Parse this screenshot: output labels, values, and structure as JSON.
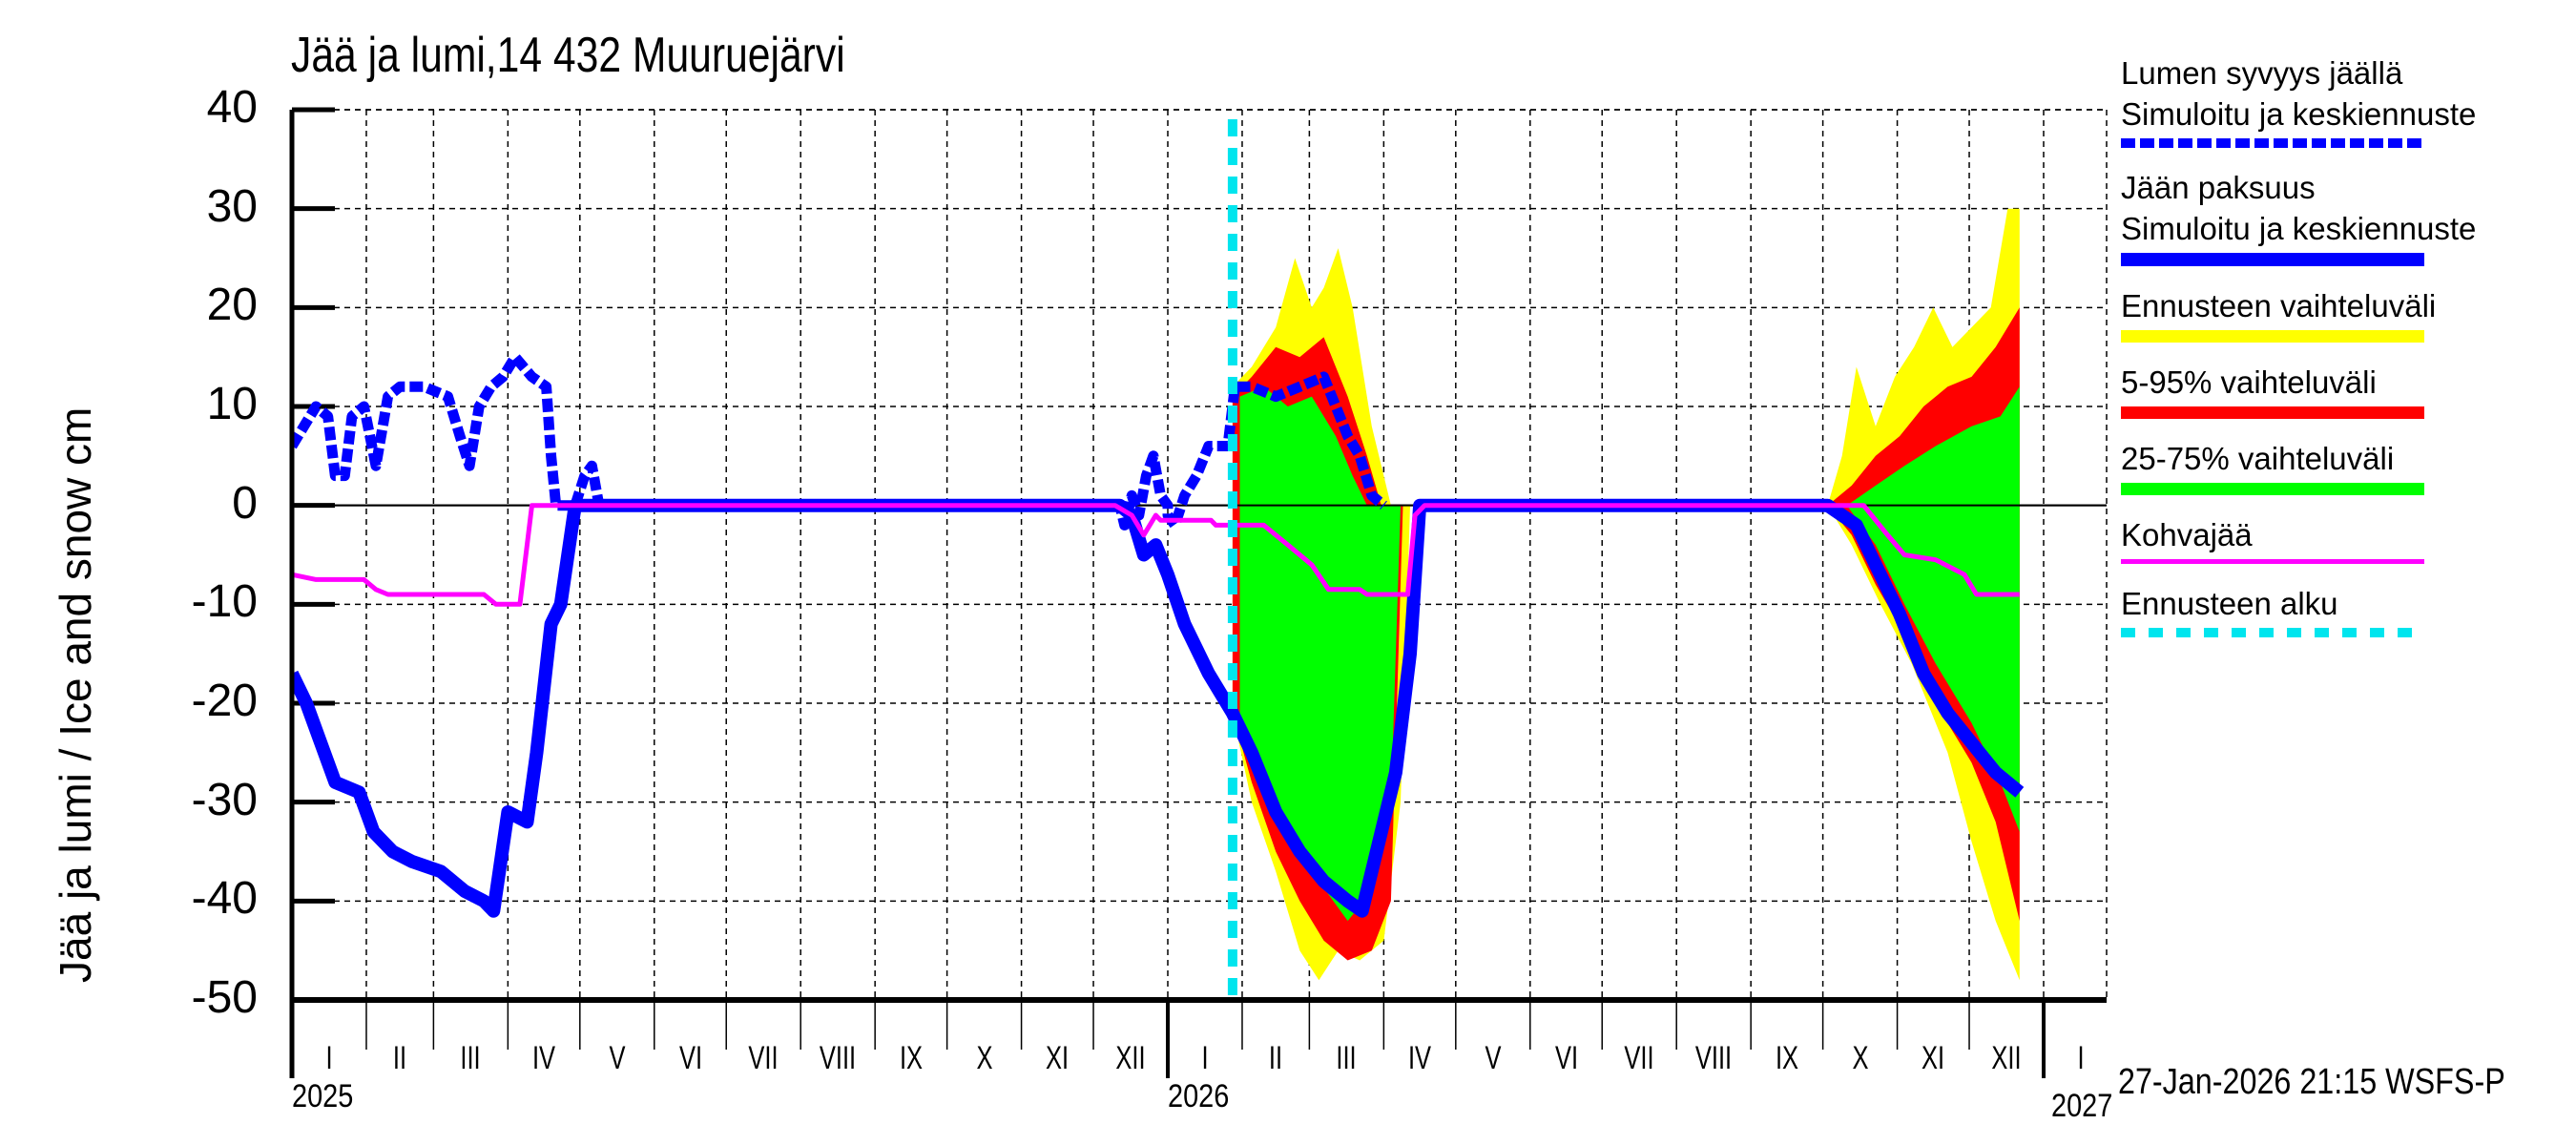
{
  "chart_data": {
    "type": "area",
    "title": "Jää ja lumi,14 432 Muuruejärvi",
    "xlabel": "",
    "ylabel": "Jää ja lumi / Ice and snow    cm",
    "ylim": [
      -50,
      40
    ],
    "yticks": [
      40,
      30,
      20,
      10,
      0,
      -10,
      -20,
      -30,
      -40,
      -50
    ],
    "grid": true,
    "legend_position": "right",
    "x_unit": "days since 2025-01-01",
    "xlim": [
      0,
      720
    ],
    "month_labels": [
      "I",
      "II",
      "III",
      "IV",
      "V",
      "VI",
      "VII",
      "VIII",
      "IX",
      "X",
      "XI",
      "XII",
      "I",
      "II",
      "III",
      "IV",
      "V",
      "VI",
      "VII",
      "VIII",
      "IX",
      "X",
      "XI",
      "XII",
      "I"
    ],
    "year_labels": [
      {
        "label": "2025",
        "day": 0
      },
      {
        "label": "2026",
        "day": 365
      },
      {
        "label": "2027",
        "day": 730
      }
    ],
    "forecast_start_day": 392,
    "series": [
      {
        "name": "Lumen syvyys jäällä – Simuloitu ja keskiennuste",
        "style": "dashed",
        "color": "#0000ff",
        "points": [
          [
            0,
            6
          ],
          [
            5,
            8
          ],
          [
            10,
            10
          ],
          [
            15,
            9
          ],
          [
            18,
            3
          ],
          [
            22,
            3
          ],
          [
            25,
            9
          ],
          [
            30,
            10
          ],
          [
            35,
            4
          ],
          [
            40,
            11
          ],
          [
            45,
            12
          ],
          [
            55,
            12
          ],
          [
            65,
            11
          ],
          [
            70,
            7
          ],
          [
            74,
            4
          ],
          [
            78,
            10
          ],
          [
            83,
            12
          ],
          [
            88,
            13
          ],
          [
            93,
            15
          ],
          [
            100,
            13
          ],
          [
            106,
            12
          ],
          [
            108,
            5
          ],
          [
            110,
            0
          ],
          [
            118,
            0
          ],
          [
            122,
            3
          ],
          [
            125,
            4
          ],
          [
            128,
            0
          ],
          [
            365,
            0
          ],
          [
            345,
            0
          ],
          [
            347,
            -2
          ],
          [
            350,
            1
          ],
          [
            353,
            -1
          ],
          [
            356,
            3
          ],
          [
            359,
            5
          ],
          [
            362,
            1
          ],
          [
            365,
            -1
          ],
          [
            368,
            -2
          ],
          [
            372,
            1
          ],
          [
            377,
            3
          ],
          [
            382,
            6
          ],
          [
            390,
            6
          ],
          [
            393,
            12
          ],
          [
            400,
            12
          ],
          [
            410,
            11
          ],
          [
            420,
            12
          ],
          [
            430,
            13
          ],
          [
            435,
            10
          ],
          [
            440,
            7
          ],
          [
            445,
            5
          ],
          [
            450,
            1
          ],
          [
            455,
            0
          ]
        ]
      },
      {
        "name": "Jään paksuus – Simuloitu ja keskiennuste",
        "style": "solid",
        "color": "#0000ff",
        "points": [
          [
            0,
            -17
          ],
          [
            6,
            -20
          ],
          [
            12,
            -24
          ],
          [
            18,
            -28
          ],
          [
            28,
            -29
          ],
          [
            34,
            -33
          ],
          [
            42,
            -35
          ],
          [
            50,
            -36
          ],
          [
            62,
            -37
          ],
          [
            72,
            -39
          ],
          [
            80,
            -40
          ],
          [
            84,
            -41
          ],
          [
            90,
            -31
          ],
          [
            98,
            -32
          ],
          [
            102,
            -25
          ],
          [
            108,
            -12
          ],
          [
            112,
            -10
          ],
          [
            118,
            0
          ],
          [
            345,
            0
          ],
          [
            350,
            -1
          ],
          [
            355,
            -5
          ],
          [
            360,
            -4
          ],
          [
            365,
            -7
          ],
          [
            372,
            -12
          ],
          [
            382,
            -17
          ],
          [
            392,
            -21
          ],
          [
            400,
            -25
          ],
          [
            410,
            -31
          ],
          [
            420,
            -35
          ],
          [
            430,
            -38
          ],
          [
            440,
            -40
          ],
          [
            446,
            -41
          ],
          [
            452,
            -35
          ],
          [
            460,
            -27
          ],
          [
            466,
            -15
          ],
          [
            470,
            0
          ],
          [
            640,
            0
          ],
          [
            652,
            -2
          ],
          [
            660,
            -6
          ],
          [
            670,
            -11
          ],
          [
            680,
            -17
          ],
          [
            690,
            -21
          ],
          [
            700,
            -24
          ],
          [
            710,
            -27
          ],
          [
            720,
            -29
          ]
        ]
      },
      {
        "name": "Kohvajää",
        "style": "solid",
        "color": "#ff00ff",
        "points": [
          [
            0,
            -7
          ],
          [
            10,
            -7.5
          ],
          [
            30,
            -7.5
          ],
          [
            35,
            -8.5
          ],
          [
            40,
            -9
          ],
          [
            80,
            -9
          ],
          [
            85,
            -10
          ],
          [
            95,
            -10
          ],
          [
            100,
            0
          ],
          [
            343,
            0
          ],
          [
            350,
            -1
          ],
          [
            355,
            -3
          ],
          [
            360,
            -1
          ],
          [
            362,
            -1.5
          ],
          [
            383,
            -1.5
          ],
          [
            385,
            -2
          ],
          [
            405,
            -2
          ],
          [
            415,
            -4
          ],
          [
            425,
            -6
          ],
          [
            432,
            -8.5
          ],
          [
            445,
            -8.5
          ],
          [
            448,
            -9
          ],
          [
            465,
            -9
          ],
          [
            468,
            -1
          ],
          [
            472,
            0
          ],
          [
            655,
            0
          ],
          [
            665,
            -3
          ],
          [
            672,
            -5
          ],
          [
            685,
            -5.5
          ],
          [
            697,
            -7
          ],
          [
            702,
            -9
          ],
          [
            720,
            -9
          ]
        ]
      }
    ],
    "bands": [
      {
        "name": "Ennusteen vaihteluväli",
        "color": "#ffff00",
        "upper": [
          [
            392,
            12
          ],
          [
            400,
            14
          ],
          [
            410,
            18
          ],
          [
            418,
            25
          ],
          [
            425,
            20
          ],
          [
            430,
            22
          ],
          [
            436,
            26
          ],
          [
            442,
            20
          ],
          [
            450,
            8
          ],
          [
            458,
            0
          ],
          [
            640,
            0
          ],
          [
            646,
            5
          ],
          [
            652,
            14
          ],
          [
            660,
            8
          ],
          [
            668,
            13
          ],
          [
            676,
            16
          ],
          [
            684,
            20
          ],
          [
            692,
            16
          ],
          [
            700,
            18
          ],
          [
            708,
            20
          ],
          [
            715,
            30
          ],
          [
            720,
            30
          ]
        ],
        "lower_top": [
          [
            392,
            0
          ],
          [
            640,
            0
          ],
          [
            720,
            0
          ]
        ],
        "upper_bottom": [
          [
            392,
            0
          ],
          [
            458,
            0
          ],
          [
            640,
            0
          ]
        ],
        "lower": [
          [
            392,
            -21
          ],
          [
            400,
            -30
          ],
          [
            410,
            -37
          ],
          [
            420,
            -45
          ],
          [
            428,
            -48
          ],
          [
            436,
            -45
          ],
          [
            445,
            -46
          ],
          [
            455,
            -44
          ],
          [
            462,
            -30
          ],
          [
            466,
            0
          ],
          [
            640,
            0
          ],
          [
            650,
            -4
          ],
          [
            662,
            -10
          ],
          [
            675,
            -16
          ],
          [
            690,
            -25
          ],
          [
            700,
            -34
          ],
          [
            710,
            -42
          ],
          [
            720,
            -48
          ]
        ]
      },
      {
        "name": "5-95% vaihteluväli",
        "color": "#ff0000",
        "upper": [
          [
            392,
            11
          ],
          [
            400,
            13
          ],
          [
            410,
            16
          ],
          [
            420,
            15
          ],
          [
            430,
            17
          ],
          [
            440,
            11
          ],
          [
            448,
            5
          ],
          [
            454,
            0
          ],
          [
            640,
            0
          ],
          [
            650,
            2
          ],
          [
            660,
            5
          ],
          [
            670,
            7
          ],
          [
            680,
            10
          ],
          [
            690,
            12
          ],
          [
            700,
            13
          ],
          [
            710,
            16
          ],
          [
            720,
            20
          ]
        ],
        "lower": [
          [
            392,
            -21
          ],
          [
            400,
            -28
          ],
          [
            410,
            -35
          ],
          [
            420,
            -40
          ],
          [
            430,
            -44
          ],
          [
            440,
            -46
          ],
          [
            450,
            -45
          ],
          [
            458,
            -40
          ],
          [
            463,
            0
          ],
          [
            640,
            0
          ],
          [
            650,
            -3
          ],
          [
            660,
            -8
          ],
          [
            672,
            -13
          ],
          [
            685,
            -20
          ],
          [
            700,
            -26
          ],
          [
            710,
            -32
          ],
          [
            720,
            -42
          ]
        ]
      },
      {
        "name": "25-75% vaihteluväli",
        "color": "#00ff00",
        "upper": [
          [
            395,
            11
          ],
          [
            405,
            12
          ],
          [
            415,
            10
          ],
          [
            425,
            11
          ],
          [
            435,
            7
          ],
          [
            442,
            3
          ],
          [
            448,
            0
          ],
          [
            648,
            0
          ],
          [
            660,
            2
          ],
          [
            672,
            4
          ],
          [
            685,
            6
          ],
          [
            700,
            8
          ],
          [
            712,
            9
          ],
          [
            720,
            12
          ]
        ],
        "lower": [
          [
            395,
            -23
          ],
          [
            410,
            -31
          ],
          [
            425,
            -37
          ],
          [
            440,
            -42
          ],
          [
            450,
            -39
          ],
          [
            458,
            -30
          ],
          [
            462,
            0
          ],
          [
            648,
            0
          ],
          [
            660,
            -4
          ],
          [
            672,
            -10
          ],
          [
            685,
            -16
          ],
          [
            700,
            -22
          ],
          [
            712,
            -28
          ],
          [
            720,
            -33
          ]
        ]
      }
    ],
    "legend": [
      {
        "text1": "Lumen syvyys jäällä",
        "text2": "Simuloitu ja keskiennuste",
        "color": "#0000ff",
        "style": "dashed"
      },
      {
        "text1": "Jään paksuus",
        "text2": "Simuloitu ja keskiennuste",
        "color": "#0000ff",
        "style": "solid"
      },
      {
        "text1": "Ennusteen vaihteluväli",
        "color": "#ffff00",
        "style": "thick"
      },
      {
        "text1": "5-95% vaihteluväli",
        "color": "#ff0000",
        "style": "thick"
      },
      {
        "text1": "25-75% vaihteluväli",
        "color": "#00ff00",
        "style": "thick"
      },
      {
        "text1": "Kohvajää",
        "color": "#ff00ff",
        "style": "thin"
      },
      {
        "text1": "Ennusteen alku",
        "color": "#00e5ee",
        "style": "dotted"
      }
    ]
  },
  "footer": {
    "timestamp": "27-Jan-2026 21:15 WSFS-P"
  }
}
